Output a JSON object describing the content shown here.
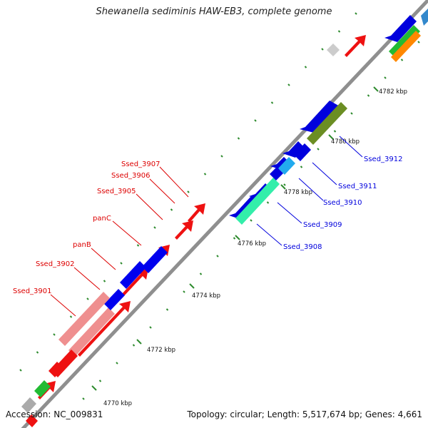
{
  "title": "Shewanella sediminis HAW-EB3, complete genome",
  "footer": {
    "accession": "Accession: NC_009831",
    "summary": "Topology: circular; Length: 5,517,674 bp; Genes: 4,661"
  },
  "colors": {
    "reverse_label": "#dd0000",
    "forward_label": "#0000dd",
    "backbone": "#999999",
    "tick": "#2e8b2e"
  },
  "scale_ticks": [
    {
      "label": "4770 kbp"
    },
    {
      "label": "4772 kbp"
    },
    {
      "label": "4774 kbp"
    },
    {
      "label": "4776 kbp"
    },
    {
      "label": "4778 kbp"
    },
    {
      "label": "4780 kbp"
    },
    {
      "label": "4782 kbp"
    }
  ],
  "reverse_gene_labels": [
    {
      "text": "Ssed_3907"
    },
    {
      "text": "Ssed_3906"
    },
    {
      "text": "Ssed_3905"
    },
    {
      "text": "panC"
    },
    {
      "text": "panB"
    },
    {
      "text": "Ssed_3902"
    },
    {
      "text": "Ssed_3901"
    }
  ],
  "forward_gene_labels": [
    {
      "text": "Ssed_3912"
    },
    {
      "text": "Ssed_3911"
    },
    {
      "text": "Ssed_3910"
    },
    {
      "text": "Ssed_3909"
    },
    {
      "text": "Ssed_3908"
    }
  ]
}
